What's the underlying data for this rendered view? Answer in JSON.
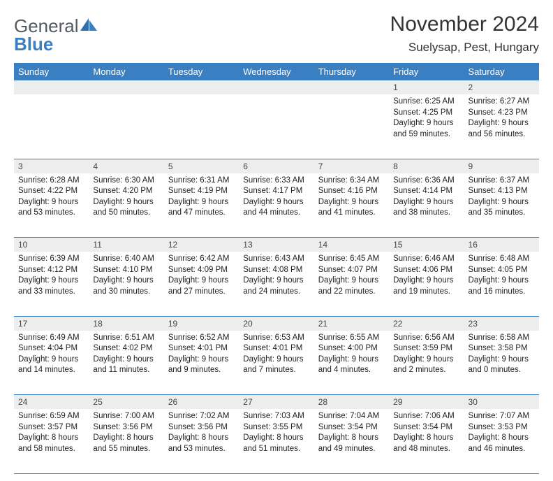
{
  "brand": {
    "part1": "General",
    "part2": "Blue"
  },
  "title": {
    "month": "November 2024",
    "location": "Suelysap, Pest, Hungary"
  },
  "colors": {
    "header_bg": "#3a7fc2",
    "header_fg": "#ffffff",
    "daynum_bg": "#eceeee",
    "text": "#222222",
    "rule": "#3a7fc2"
  },
  "weekdays": [
    "Sunday",
    "Monday",
    "Tuesday",
    "Wednesday",
    "Thursday",
    "Friday",
    "Saturday"
  ],
  "weeks": [
    [
      {
        "n": "",
        "sr": "",
        "ss": "",
        "dl": ""
      },
      {
        "n": "",
        "sr": "",
        "ss": "",
        "dl": ""
      },
      {
        "n": "",
        "sr": "",
        "ss": "",
        "dl": ""
      },
      {
        "n": "",
        "sr": "",
        "ss": "",
        "dl": ""
      },
      {
        "n": "",
        "sr": "",
        "ss": "",
        "dl": ""
      },
      {
        "n": "1",
        "sr": "Sunrise: 6:25 AM",
        "ss": "Sunset: 4:25 PM",
        "dl": "Daylight: 9 hours and 59 minutes."
      },
      {
        "n": "2",
        "sr": "Sunrise: 6:27 AM",
        "ss": "Sunset: 4:23 PM",
        "dl": "Daylight: 9 hours and 56 minutes."
      }
    ],
    [
      {
        "n": "3",
        "sr": "Sunrise: 6:28 AM",
        "ss": "Sunset: 4:22 PM",
        "dl": "Daylight: 9 hours and 53 minutes."
      },
      {
        "n": "4",
        "sr": "Sunrise: 6:30 AM",
        "ss": "Sunset: 4:20 PM",
        "dl": "Daylight: 9 hours and 50 minutes."
      },
      {
        "n": "5",
        "sr": "Sunrise: 6:31 AM",
        "ss": "Sunset: 4:19 PM",
        "dl": "Daylight: 9 hours and 47 minutes."
      },
      {
        "n": "6",
        "sr": "Sunrise: 6:33 AM",
        "ss": "Sunset: 4:17 PM",
        "dl": "Daylight: 9 hours and 44 minutes."
      },
      {
        "n": "7",
        "sr": "Sunrise: 6:34 AM",
        "ss": "Sunset: 4:16 PM",
        "dl": "Daylight: 9 hours and 41 minutes."
      },
      {
        "n": "8",
        "sr": "Sunrise: 6:36 AM",
        "ss": "Sunset: 4:14 PM",
        "dl": "Daylight: 9 hours and 38 minutes."
      },
      {
        "n": "9",
        "sr": "Sunrise: 6:37 AM",
        "ss": "Sunset: 4:13 PM",
        "dl": "Daylight: 9 hours and 35 minutes."
      }
    ],
    [
      {
        "n": "10",
        "sr": "Sunrise: 6:39 AM",
        "ss": "Sunset: 4:12 PM",
        "dl": "Daylight: 9 hours and 33 minutes."
      },
      {
        "n": "11",
        "sr": "Sunrise: 6:40 AM",
        "ss": "Sunset: 4:10 PM",
        "dl": "Daylight: 9 hours and 30 minutes."
      },
      {
        "n": "12",
        "sr": "Sunrise: 6:42 AM",
        "ss": "Sunset: 4:09 PM",
        "dl": "Daylight: 9 hours and 27 minutes."
      },
      {
        "n": "13",
        "sr": "Sunrise: 6:43 AM",
        "ss": "Sunset: 4:08 PM",
        "dl": "Daylight: 9 hours and 24 minutes."
      },
      {
        "n": "14",
        "sr": "Sunrise: 6:45 AM",
        "ss": "Sunset: 4:07 PM",
        "dl": "Daylight: 9 hours and 22 minutes."
      },
      {
        "n": "15",
        "sr": "Sunrise: 6:46 AM",
        "ss": "Sunset: 4:06 PM",
        "dl": "Daylight: 9 hours and 19 minutes."
      },
      {
        "n": "16",
        "sr": "Sunrise: 6:48 AM",
        "ss": "Sunset: 4:05 PM",
        "dl": "Daylight: 9 hours and 16 minutes."
      }
    ],
    [
      {
        "n": "17",
        "sr": "Sunrise: 6:49 AM",
        "ss": "Sunset: 4:04 PM",
        "dl": "Daylight: 9 hours and 14 minutes."
      },
      {
        "n": "18",
        "sr": "Sunrise: 6:51 AM",
        "ss": "Sunset: 4:02 PM",
        "dl": "Daylight: 9 hours and 11 minutes."
      },
      {
        "n": "19",
        "sr": "Sunrise: 6:52 AM",
        "ss": "Sunset: 4:01 PM",
        "dl": "Daylight: 9 hours and 9 minutes."
      },
      {
        "n": "20",
        "sr": "Sunrise: 6:53 AM",
        "ss": "Sunset: 4:01 PM",
        "dl": "Daylight: 9 hours and 7 minutes."
      },
      {
        "n": "21",
        "sr": "Sunrise: 6:55 AM",
        "ss": "Sunset: 4:00 PM",
        "dl": "Daylight: 9 hours and 4 minutes."
      },
      {
        "n": "22",
        "sr": "Sunrise: 6:56 AM",
        "ss": "Sunset: 3:59 PM",
        "dl": "Daylight: 9 hours and 2 minutes."
      },
      {
        "n": "23",
        "sr": "Sunrise: 6:58 AM",
        "ss": "Sunset: 3:58 PM",
        "dl": "Daylight: 9 hours and 0 minutes."
      }
    ],
    [
      {
        "n": "24",
        "sr": "Sunrise: 6:59 AM",
        "ss": "Sunset: 3:57 PM",
        "dl": "Daylight: 8 hours and 58 minutes."
      },
      {
        "n": "25",
        "sr": "Sunrise: 7:00 AM",
        "ss": "Sunset: 3:56 PM",
        "dl": "Daylight: 8 hours and 55 minutes."
      },
      {
        "n": "26",
        "sr": "Sunrise: 7:02 AM",
        "ss": "Sunset: 3:56 PM",
        "dl": "Daylight: 8 hours and 53 minutes."
      },
      {
        "n": "27",
        "sr": "Sunrise: 7:03 AM",
        "ss": "Sunset: 3:55 PM",
        "dl": "Daylight: 8 hours and 51 minutes."
      },
      {
        "n": "28",
        "sr": "Sunrise: 7:04 AM",
        "ss": "Sunset: 3:54 PM",
        "dl": "Daylight: 8 hours and 49 minutes."
      },
      {
        "n": "29",
        "sr": "Sunrise: 7:06 AM",
        "ss": "Sunset: 3:54 PM",
        "dl": "Daylight: 8 hours and 48 minutes."
      },
      {
        "n": "30",
        "sr": "Sunrise: 7:07 AM",
        "ss": "Sunset: 3:53 PM",
        "dl": "Daylight: 8 hours and 46 minutes."
      }
    ]
  ]
}
